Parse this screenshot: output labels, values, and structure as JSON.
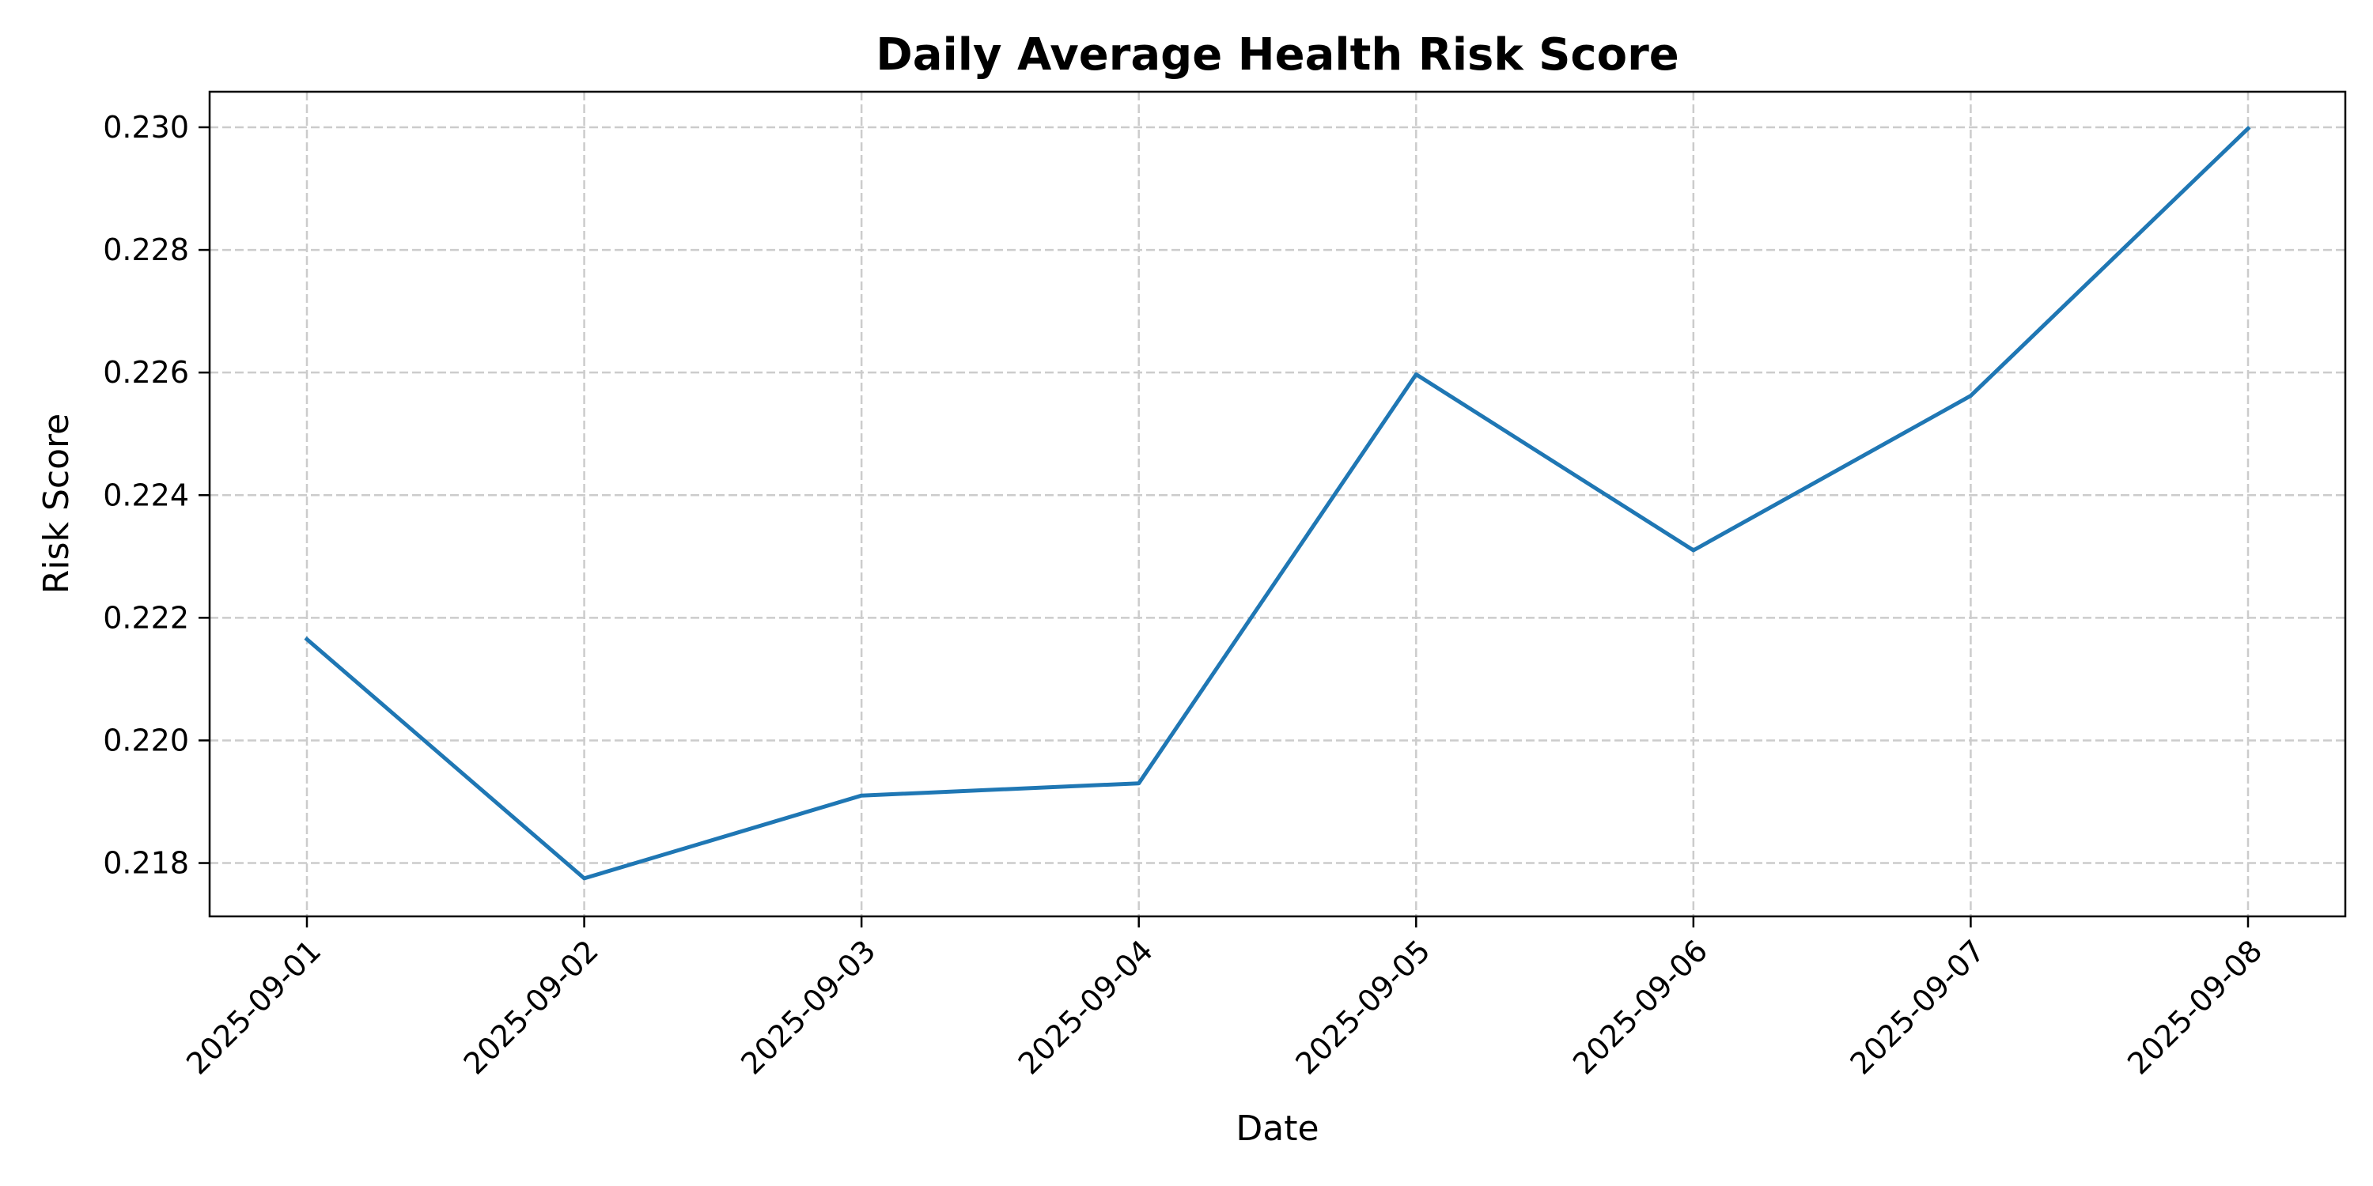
{
  "chart_data": {
    "type": "line",
    "title": "Daily Average Health Risk Score",
    "xlabel": "Date",
    "ylabel": "Risk Score",
    "x": [
      "2025-09-01",
      "2025-09-02",
      "2025-09-03",
      "2025-09-04",
      "2025-09-05",
      "2025-09-06",
      "2025-09-07",
      "2025-09-08"
    ],
    "series": [
      {
        "values": [
          0.22165,
          0.21775,
          0.2191,
          0.2193,
          0.22597,
          0.2231,
          0.22562,
          0.22998
        ]
      }
    ],
    "ylim": [
      0.21713,
      0.23058
    ],
    "yticks": [
      0.218,
      0.22,
      0.222,
      0.224,
      0.226,
      0.228,
      0.23
    ],
    "ytick_labels": [
      "0.218",
      "0.220",
      "0.222",
      "0.224",
      "0.226",
      "0.228",
      "0.230"
    ],
    "grid": true,
    "line_color": "#1f77b4"
  }
}
